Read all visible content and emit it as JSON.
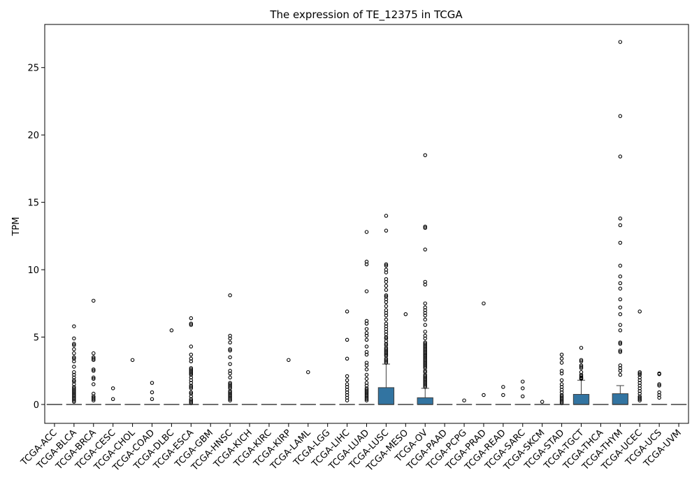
{
  "chart_data": {
    "type": "box",
    "title": "The expression of TE_12375 in TCGA",
    "xlabel": "",
    "ylabel": "TPM",
    "ylim": [
      -1.4,
      28.2
    ],
    "yticks": [
      0,
      5,
      10,
      15,
      20,
      25
    ],
    "grid": false,
    "legend": "none",
    "box_color": "#3274a1",
    "categories": [
      "TCGA-ACC",
      "TCGA-BLCA",
      "TCGA-BRCA",
      "TCGA-CESC",
      "TCGA-CHOL",
      "TCGA-COAD",
      "TCGA-DLBC",
      "TCGA-ESCA",
      "TCGA-GBM",
      "TCGA-HNSC",
      "TCGA-KICH",
      "TCGA-KIRC",
      "TCGA-KIRP",
      "TCGA-LAML",
      "TCGA-LGG",
      "TCGA-LIHC",
      "TCGA-LUAD",
      "TCGA-LUSC",
      "TCGA-MESO",
      "TCGA-OV",
      "TCGA-PAAD",
      "TCGA-PCPG",
      "TCGA-PRAD",
      "TCGA-READ",
      "TCGA-SARC",
      "TCGA-SKCM",
      "TCGA-STAD",
      "TCGA-TGCT",
      "TCGA-THCA",
      "TCGA-THYM",
      "TCGA-UCEC",
      "TCGA-UCS",
      "TCGA-UVM"
    ],
    "boxes": [
      {
        "q1": 0,
        "median": 0,
        "q3": 0,
        "whislo": 0,
        "whishi": 0,
        "fliers": []
      },
      {
        "q1": 0,
        "median": 0,
        "q3": 0,
        "whislo": 0,
        "whishi": 0,
        "fliers": [
          5.8,
          4.9,
          4.5,
          4.4,
          4.1,
          3.8,
          3.5,
          3.4,
          3.2,
          2.8,
          2.4,
          2.2,
          2.0,
          1.8,
          1.7,
          1.5,
          1.3,
          1.2,
          1.1,
          1.0,
          0.9,
          0.8,
          0.7,
          0.6,
          0.5,
          0.4,
          0.3,
          0.2
        ]
      },
      {
        "q1": 0,
        "median": 0,
        "q3": 0,
        "whislo": 0,
        "whishi": 0,
        "fliers": [
          7.7,
          3.8,
          3.5,
          3.4,
          3.3,
          2.6,
          2.5,
          2.0,
          1.9,
          1.5,
          0.8,
          0.6,
          0.5,
          0.4,
          0.3
        ]
      },
      {
        "q1": 0,
        "median": 0,
        "q3": 0,
        "whislo": 0,
        "whishi": 0,
        "fliers": [
          1.2,
          0.4
        ]
      },
      {
        "q1": 0,
        "median": 0,
        "q3": 0,
        "whislo": 0,
        "whishi": 0,
        "fliers": [
          3.3
        ]
      },
      {
        "q1": 0,
        "median": 0,
        "q3": 0,
        "whislo": 0,
        "whishi": 0,
        "fliers": [
          1.6,
          0.9,
          0.4
        ]
      },
      {
        "q1": 0,
        "median": 0,
        "q3": 0,
        "whislo": 0,
        "whishi": 0,
        "fliers": [
          5.5
        ]
      },
      {
        "q1": 0,
        "median": 0,
        "q3": 0,
        "whislo": 0,
        "whishi": 0,
        "fliers": [
          6.4,
          6.0,
          5.9,
          4.3,
          3.7,
          3.4,
          3.2,
          2.7,
          2.6,
          2.5,
          2.4,
          2.3,
          2.2,
          2.0,
          1.8,
          1.6,
          1.4,
          1.3,
          1.2,
          0.9,
          0.8,
          0.6,
          0.4,
          0.3,
          0.2,
          0.1
        ]
      },
      {
        "q1": 0,
        "median": 0,
        "q3": 0,
        "whislo": 0,
        "whishi": 0,
        "fliers": []
      },
      {
        "q1": 0,
        "median": 0,
        "q3": 0,
        "whislo": 0,
        "whishi": 0,
        "fliers": [
          8.1,
          5.1,
          4.9,
          4.6,
          4.1,
          4.0,
          3.5,
          3.0,
          2.5,
          2.3,
          2.0,
          1.6,
          1.5,
          1.4,
          1.3,
          1.2,
          1.0,
          0.9,
          0.8,
          0.7,
          0.6,
          0.5,
          0.4,
          0.3
        ]
      },
      {
        "q1": 0,
        "median": 0,
        "q3": 0,
        "whislo": 0,
        "whishi": 0,
        "fliers": []
      },
      {
        "q1": 0,
        "median": 0,
        "q3": 0,
        "whislo": 0,
        "whishi": 0,
        "fliers": []
      },
      {
        "q1": 0,
        "median": 0,
        "q3": 0,
        "whislo": 0,
        "whishi": 0,
        "fliers": [
          3.3
        ]
      },
      {
        "q1": 0,
        "median": 0,
        "q3": 0,
        "whislo": 0,
        "whishi": 0,
        "fliers": [
          2.4
        ]
      },
      {
        "q1": 0,
        "median": 0,
        "q3": 0,
        "whislo": 0,
        "whishi": 0,
        "fliers": []
      },
      {
        "q1": 0,
        "median": 0,
        "q3": 0,
        "whislo": 0,
        "whishi": 0,
        "fliers": [
          6.9,
          4.8,
          3.4,
          2.1,
          1.8,
          1.5,
          1.3,
          1.1,
          0.9,
          0.7,
          0.5,
          0.3
        ]
      },
      {
        "q1": 0,
        "median": 0,
        "q3": 0,
        "whislo": 0,
        "whishi": 0,
        "fliers": [
          12.8,
          10.6,
          10.4,
          8.4,
          6.2,
          6.0,
          5.6,
          5.3,
          5.1,
          4.8,
          4.3,
          3.9,
          3.7,
          3.1,
          2.9,
          2.6,
          2.2,
          1.9,
          1.6,
          1.4,
          1.2,
          1.1,
          1.0,
          0.9,
          0.8,
          0.7,
          0.6,
          0.5,
          0.4,
          0.3
        ]
      },
      {
        "q1": 0,
        "median": 0,
        "q3": 1.25,
        "whislo": 0,
        "whishi": 3.0,
        "fliers": [
          14.0,
          12.9,
          10.4,
          10.3,
          10.0,
          9.8,
          9.3,
          9.1,
          8.8,
          8.5,
          8.1,
          8.0,
          7.8,
          7.6,
          7.3,
          7.0,
          6.8,
          6.6,
          6.3,
          6.0,
          5.8,
          5.6,
          5.4,
          5.2,
          5.0,
          4.9,
          4.7,
          4.5,
          4.4,
          4.2,
          4.1,
          4.0,
          3.9,
          3.8,
          3.7,
          3.6,
          3.4,
          3.3,
          3.2,
          3.1
        ]
      },
      {
        "q1": 0,
        "median": 0,
        "q3": 0,
        "whislo": 0,
        "whishi": 0,
        "fliers": [
          6.7
        ]
      },
      {
        "q1": 0,
        "median": 0,
        "q3": 0.5,
        "whislo": 0,
        "whishi": 1.2,
        "fliers": [
          18.5,
          13.2,
          13.1,
          11.5,
          9.1,
          8.9,
          7.5,
          7.2,
          7.0,
          6.8,
          6.6,
          6.3,
          5.9,
          5.4,
          5.1,
          4.9,
          4.6,
          4.5,
          4.4,
          4.3,
          4.2,
          4.1,
          4.0,
          3.9,
          3.8,
          3.7,
          3.6,
          3.5,
          3.4,
          3.3,
          3.2,
          3.1,
          3.0,
          2.9,
          2.8,
          2.7,
          2.5,
          2.4,
          2.2,
          2.1,
          2.0,
          1.9,
          1.8,
          1.7,
          1.6,
          1.5,
          1.4,
          1.3
        ]
      },
      {
        "q1": 0,
        "median": 0,
        "q3": 0,
        "whislo": 0,
        "whishi": 0,
        "fliers": []
      },
      {
        "q1": 0,
        "median": 0,
        "q3": 0,
        "whislo": 0,
        "whishi": 0,
        "fliers": [
          0.3
        ]
      },
      {
        "q1": 0,
        "median": 0,
        "q3": 0,
        "whislo": 0,
        "whishi": 0,
        "fliers": [
          7.5,
          0.7
        ]
      },
      {
        "q1": 0,
        "median": 0,
        "q3": 0,
        "whislo": 0,
        "whishi": 0,
        "fliers": [
          1.3,
          0.7
        ]
      },
      {
        "q1": 0,
        "median": 0,
        "q3": 0,
        "whislo": 0,
        "whishi": 0,
        "fliers": [
          1.7,
          1.2,
          0.6
        ]
      },
      {
        "q1": 0,
        "median": 0,
        "q3": 0,
        "whislo": 0,
        "whishi": 0,
        "fliers": [
          0.2
        ]
      },
      {
        "q1": 0,
        "median": 0,
        "q3": 0,
        "whislo": 0,
        "whishi": 0,
        "fliers": [
          3.7,
          3.4,
          3.1,
          2.5,
          2.3,
          1.8,
          1.5,
          1.3,
          1.1,
          0.9,
          0.7,
          0.6,
          0.5,
          0.4,
          0.3,
          0.2,
          0.1
        ]
      },
      {
        "q1": 0,
        "median": 0,
        "q3": 0.75,
        "whislo": 0,
        "whishi": 1.8,
        "fliers": [
          4.2,
          3.3,
          3.2,
          2.9,
          2.8,
          2.7,
          2.4,
          2.2,
          2.1,
          2.0,
          1.95,
          1.9
        ]
      },
      {
        "q1": 0,
        "median": 0,
        "q3": 0,
        "whislo": 0,
        "whishi": 0,
        "fliers": []
      },
      {
        "q1": 0,
        "median": 0,
        "q3": 0.8,
        "whislo": 0,
        "whishi": 1.4,
        "fliers": [
          26.9,
          21.4,
          18.4,
          13.8,
          13.3,
          12.0,
          10.3,
          9.5,
          9.0,
          8.6,
          7.8,
          7.2,
          6.7,
          5.9,
          5.5,
          4.6,
          4.5,
          4.0,
          3.9,
          2.9,
          2.7,
          2.5,
          2.2
        ]
      },
      {
        "q1": 0,
        "median": 0,
        "q3": 0,
        "whislo": 0,
        "whishi": 0,
        "fliers": [
          6.9,
          2.4,
          2.3,
          2.2,
          2.0,
          1.8,
          1.6,
          1.4,
          1.2,
          1.0,
          0.8,
          0.6,
          0.5,
          0.4,
          0.3
        ]
      },
      {
        "q1": 0,
        "median": 0,
        "q3": 0,
        "whislo": 0,
        "whishi": 0,
        "fliers": [
          2.3,
          2.25,
          1.5,
          1.4,
          0.9,
          0.7,
          0.5
        ]
      },
      {
        "q1": 0,
        "median": 0,
        "q3": 0,
        "whislo": 0,
        "whishi": 0,
        "fliers": []
      }
    ]
  }
}
